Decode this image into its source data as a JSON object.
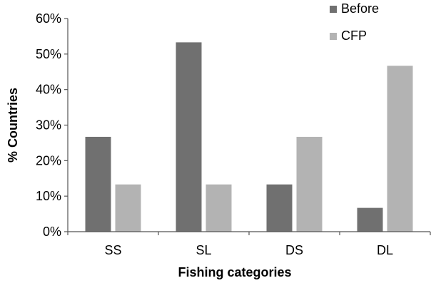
{
  "chart_data": {
    "type": "bar",
    "title": "",
    "xlabel": "Fishing categories",
    "ylabel": "% Countries",
    "categories": [
      "SS",
      "SL",
      "DS",
      "DL"
    ],
    "series": [
      {
        "name": "Before",
        "values": [
          26.7,
          53.3,
          13.3,
          6.7
        ],
        "color": "#707070"
      },
      {
        "name": "CFP",
        "values": [
          13.3,
          13.3,
          26.7,
          46.7
        ],
        "color": "#b3b3b3"
      }
    ],
    "ylim": [
      0,
      60
    ],
    "yticks": [
      0,
      10,
      20,
      30,
      40,
      50,
      60
    ],
    "ytick_labels": [
      "0%",
      "10%",
      "20%",
      "30%",
      "40%",
      "50%",
      "60%"
    ],
    "grid": false,
    "legend_position": "top-right"
  }
}
